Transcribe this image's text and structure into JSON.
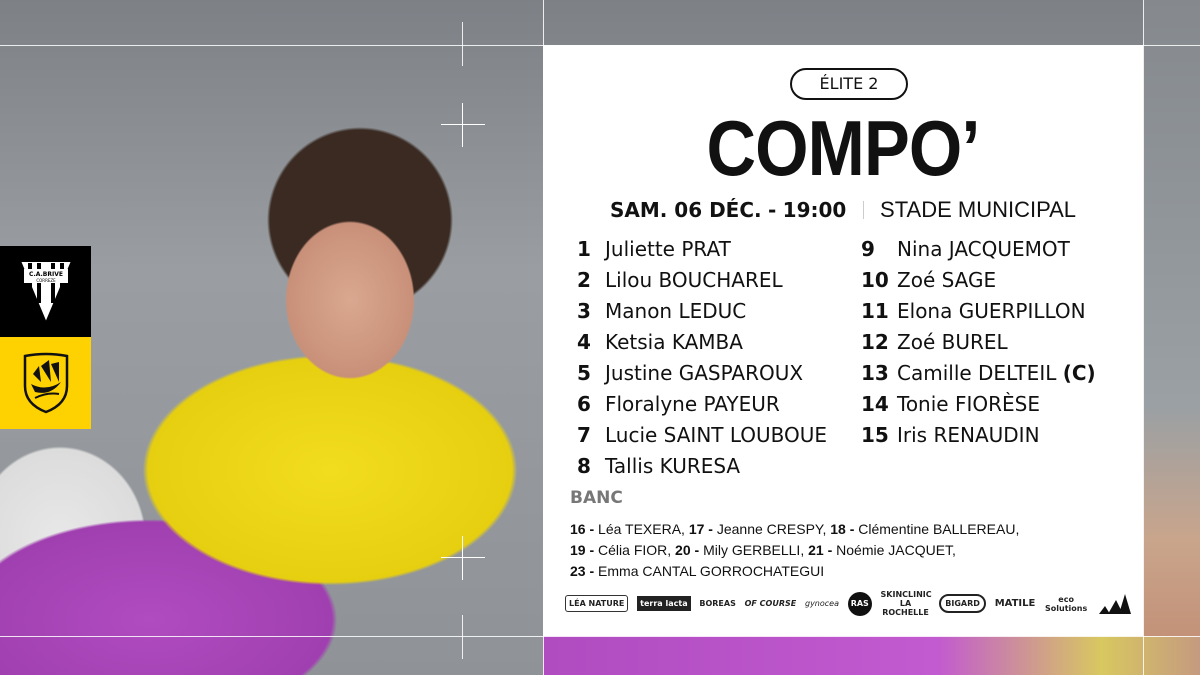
{
  "clubs": {
    "home": "C.A. Brive Corrèze Limousin",
    "away": "Stade Rochelais",
    "brand_colors": {
      "black": "#000000",
      "yellow": "#fed100"
    }
  },
  "competition": "ÉLITE 2",
  "title": "COMPO’",
  "match": {
    "date": "SAM. 06 DÉC.",
    "time": "19:00",
    "separator": "-",
    "venue": "STADE MUNICIPAL"
  },
  "starters": [
    {
      "num": "1",
      "name": "Juliette PRAT"
    },
    {
      "num": "2",
      "name": "Lilou BOUCHAREL"
    },
    {
      "num": "3",
      "name": "Manon LEDUC"
    },
    {
      "num": "4",
      "name": "Ketsia KAMBA"
    },
    {
      "num": "5",
      "name": "Justine GASPAROUX"
    },
    {
      "num": "6",
      "name": "Floralyne PAYEUR"
    },
    {
      "num": "7",
      "name": "Lucie SAINT LOUBOUE"
    },
    {
      "num": "8",
      "name": "Tallis KURESA"
    },
    {
      "num": "9",
      "name": "Nina JACQUEMOT"
    },
    {
      "num": "10",
      "name": "Zoé SAGE"
    },
    {
      "num": "11",
      "name": "Elona GUERPILLON"
    },
    {
      "num": "12",
      "name": "Zoé BUREL"
    },
    {
      "num": "13",
      "name": "Camille DELTEIL",
      "captain": "(C)"
    },
    {
      "num": "14",
      "name": "Tonie FIORÈSE"
    },
    {
      "num": "15",
      "name": "Iris RENAUDIN"
    }
  ],
  "bench": {
    "title": "BANC",
    "players": [
      {
        "num": "16",
        "name": "Léa TEXERA,"
      },
      {
        "num": "17",
        "name": "Jeanne CRESPY,"
      },
      {
        "num": "18",
        "name": "Clémentine BALLEREAU,"
      },
      {
        "num": "19",
        "name": "Célia FIOR,"
      },
      {
        "num": "20",
        "name": "Mily GERBELLI,"
      },
      {
        "num": "21",
        "name": " Noémie JACQUET,"
      },
      {
        "num": "23",
        "name": "Emma CANTAL GORROCHATEGUI"
      }
    ]
  },
  "sponsors": [
    "LÉA NATURE",
    "terra lacta",
    "BOREAS",
    "OF COURSE",
    "gynocea",
    "RAS",
    "SKINCLINIC LA ROCHELLE",
    "BIGARD",
    "MATILE",
    "eco Solutions",
    "adidas"
  ]
}
